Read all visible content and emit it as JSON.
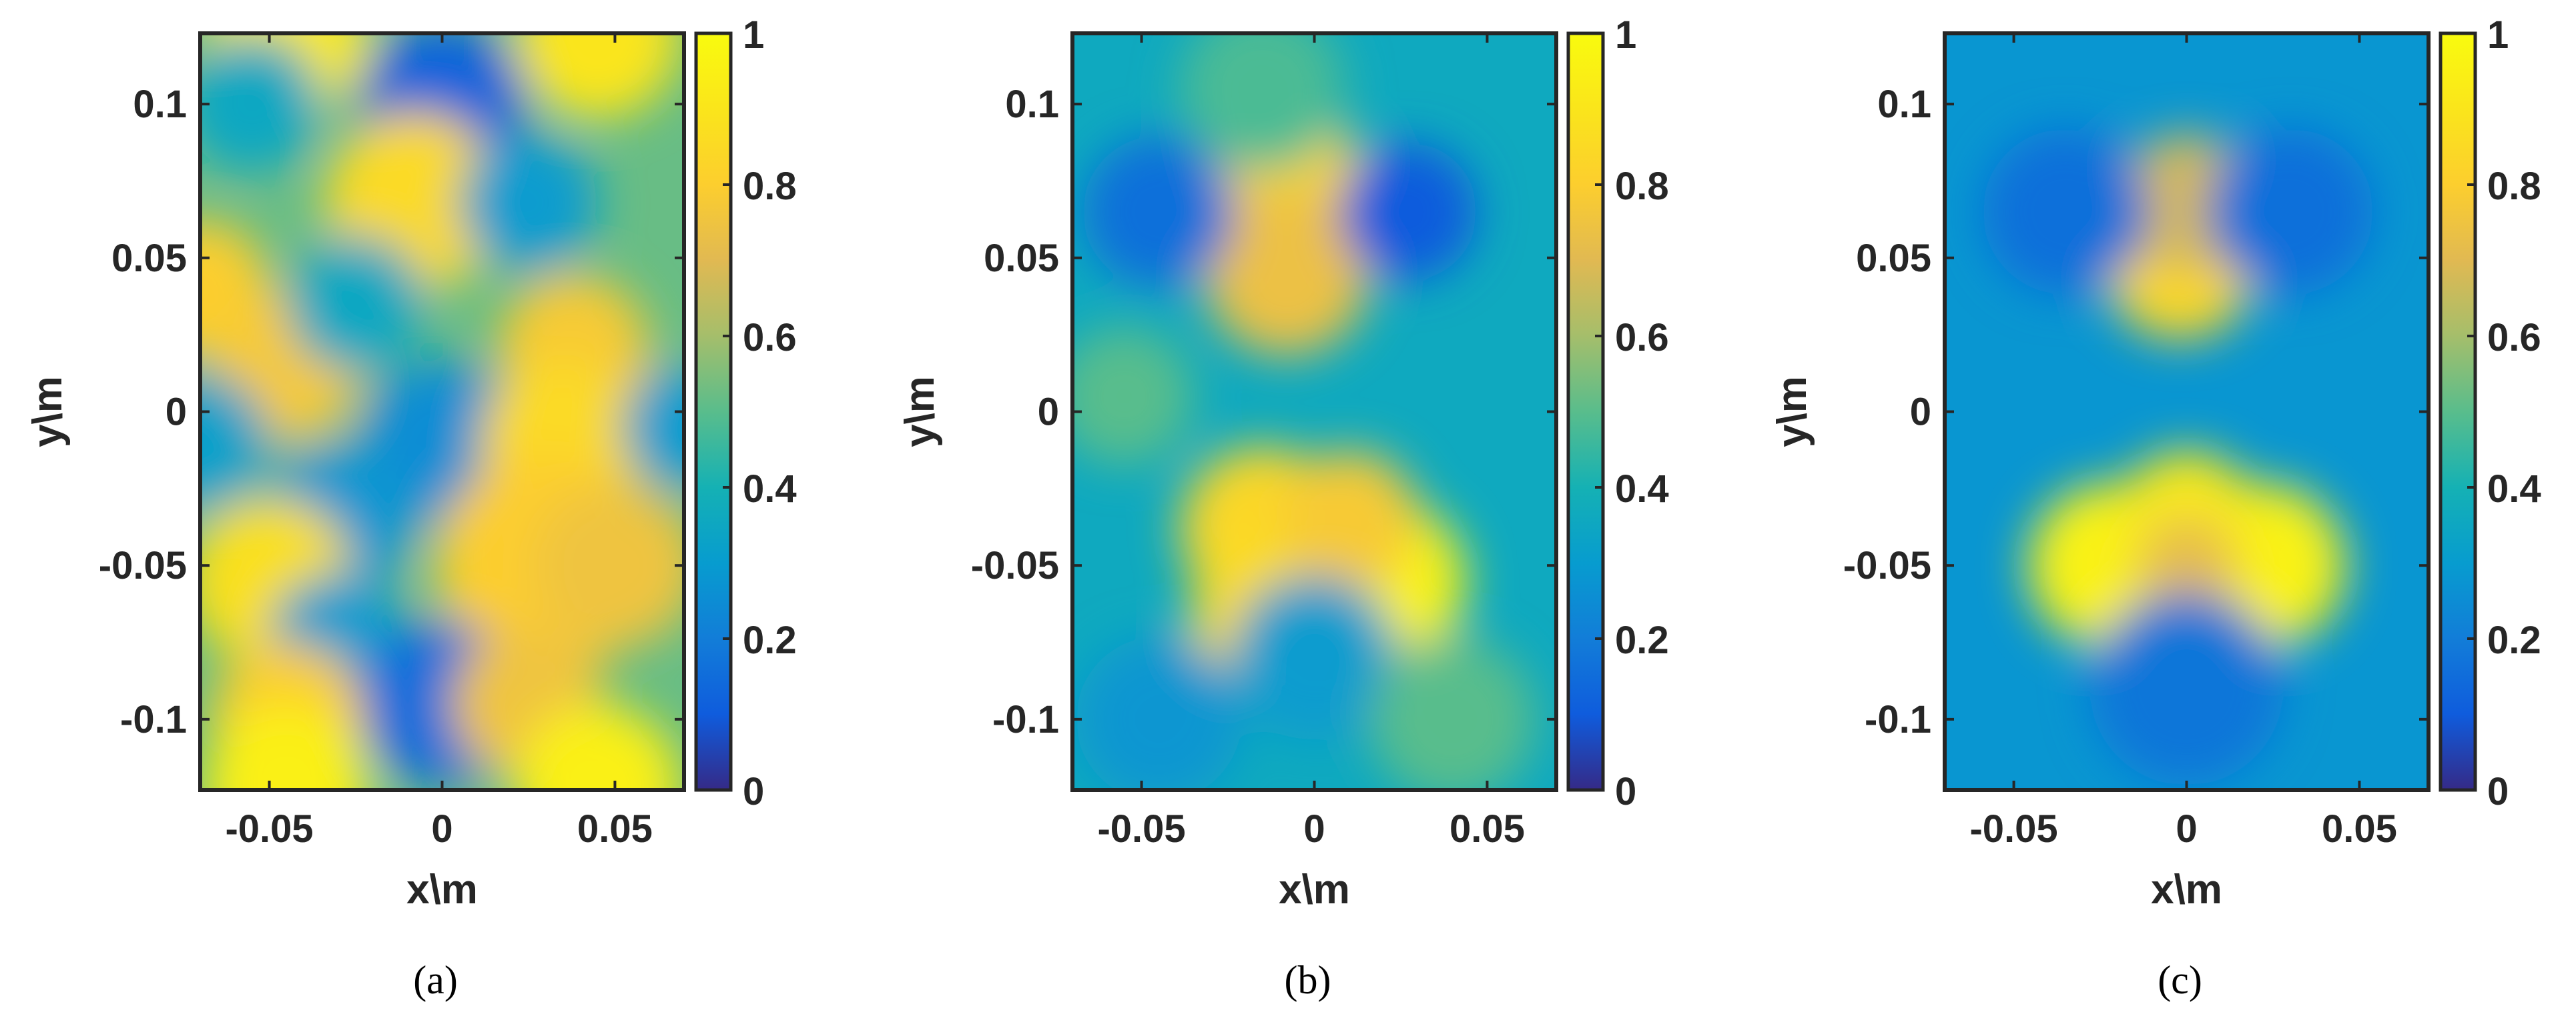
{
  "chart_data": [
    {
      "type": "heatmap",
      "caption": "(a)",
      "xlabel": "x\\m",
      "ylabel": "y\\m",
      "xlim": [
        -0.07,
        0.07
      ],
      "ylim": [
        -0.123,
        0.123
      ],
      "xticks": [
        -0.05,
        0,
        0.05
      ],
      "xtick_labels": [
        "-0.05",
        "0",
        "0.05"
      ],
      "yticks": [
        0.1,
        0.05,
        0,
        -0.05,
        -0.1
      ],
      "ytick_labels": [
        "0.1",
        "0.05",
        "0",
        "-0.05",
        "-0.1"
      ],
      "colorbar": {
        "range": [
          0,
          1
        ],
        "ticks": [
          1,
          0.8,
          0.6,
          0.4,
          0.2,
          0
        ],
        "tick_labels": [
          "1",
          "0.8",
          "0.6",
          "0.4",
          "0.2",
          "0"
        ],
        "colormap": "parula"
      },
      "base_level": 0.52,
      "features": [
        {
          "x": -0.045,
          "y": 0.122,
          "value": 0.92,
          "width": 0.012
        },
        {
          "x": 0.045,
          "y": 0.122,
          "value": 0.9,
          "width": 0.012
        },
        {
          "x": 0.0,
          "y": 0.1,
          "value": 0.12,
          "width": 0.012
        },
        {
          "x": -0.055,
          "y": 0.1,
          "value": 0.35,
          "width": 0.01
        },
        {
          "x": -0.008,
          "y": 0.068,
          "value": 0.85,
          "width": 0.013
        },
        {
          "x": 0.025,
          "y": 0.068,
          "value": 0.3,
          "width": 0.01
        },
        {
          "x": -0.07,
          "y": 0.04,
          "value": 0.8,
          "width": 0.01
        },
        {
          "x": 0.038,
          "y": 0.02,
          "value": 0.78,
          "width": 0.011
        },
        {
          "x": -0.045,
          "y": 0.015,
          "value": 0.78,
          "width": 0.011
        },
        {
          "x": -0.025,
          "y": 0.035,
          "value": 0.35,
          "width": 0.01
        },
        {
          "x": 0.0,
          "y": -0.01,
          "value": 0.25,
          "width": 0.012
        },
        {
          "x": 0.035,
          "y": -0.01,
          "value": 0.85,
          "width": 0.012
        },
        {
          "x": -0.07,
          "y": -0.01,
          "value": 0.32,
          "width": 0.01
        },
        {
          "x": 0.07,
          "y": -0.005,
          "value": 0.3,
          "width": 0.009
        },
        {
          "x": -0.03,
          "y": -0.035,
          "value": 0.28,
          "width": 0.011
        },
        {
          "x": -0.05,
          "y": -0.055,
          "value": 0.88,
          "width": 0.012
        },
        {
          "x": 0.03,
          "y": -0.05,
          "value": 0.8,
          "width": 0.016
        },
        {
          "x": 0.05,
          "y": -0.05,
          "value": 0.75,
          "width": 0.012
        },
        {
          "x": -0.03,
          "y": -0.075,
          "value": 0.3,
          "width": 0.01
        },
        {
          "x": 0.0,
          "y": -0.095,
          "value": 0.15,
          "width": 0.012
        },
        {
          "x": -0.045,
          "y": -0.1,
          "value": 0.8,
          "width": 0.011
        },
        {
          "x": 0.025,
          "y": -0.095,
          "value": 0.75,
          "width": 0.011
        },
        {
          "x": -0.045,
          "y": -0.122,
          "value": 0.95,
          "width": 0.012
        },
        {
          "x": 0.045,
          "y": -0.122,
          "value": 0.95,
          "width": 0.012
        }
      ]
    },
    {
      "type": "heatmap",
      "caption": "(b)",
      "xlabel": "x\\m",
      "ylabel": "y\\m",
      "xlim": [
        -0.07,
        0.07
      ],
      "ylim": [
        -0.123,
        0.123
      ],
      "xticks": [
        -0.05,
        0,
        0.05
      ],
      "xtick_labels": [
        "-0.05",
        "0",
        "0.05"
      ],
      "yticks": [
        0.1,
        0.05,
        0,
        -0.05,
        -0.1
      ],
      "ytick_labels": [
        "0.1",
        "0.05",
        "0",
        "-0.05",
        "-0.1"
      ],
      "colorbar": {
        "range": [
          0,
          1
        ],
        "ticks": [
          1,
          0.8,
          0.6,
          0.4,
          0.2,
          0
        ],
        "tick_labels": [
          "1",
          "0.8",
          "0.6",
          "0.4",
          "0.2",
          "0"
        ],
        "colormap": "parula"
      },
      "base_level": 0.36,
      "features": [
        {
          "x": -0.008,
          "y": 0.065,
          "value": 0.84,
          "width": 0.014
        },
        {
          "x": -0.008,
          "y": 0.045,
          "value": 0.74,
          "width": 0.012
        },
        {
          "x": 0.027,
          "y": 0.065,
          "value": 0.1,
          "width": 0.01
        },
        {
          "x": -0.045,
          "y": 0.065,
          "value": 0.16,
          "width": 0.011
        },
        {
          "x": -0.015,
          "y": 0.105,
          "value": 0.48,
          "width": 0.012
        },
        {
          "x": -0.055,
          "y": 0.005,
          "value": 0.5,
          "width": 0.01
        },
        {
          "x": -0.015,
          "y": -0.038,
          "value": 0.84,
          "width": 0.012
        },
        {
          "x": 0.02,
          "y": -0.055,
          "value": 0.96,
          "width": 0.012
        },
        {
          "x": -0.012,
          "y": -0.065,
          "value": 0.86,
          "width": 0.012
        },
        {
          "x": 0.01,
          "y": -0.035,
          "value": 0.78,
          "width": 0.01
        },
        {
          "x": 0.0,
          "y": -0.08,
          "value": 0.3,
          "width": 0.012
        },
        {
          "x": 0.04,
          "y": -0.1,
          "value": 0.5,
          "width": 0.012
        },
        {
          "x": -0.045,
          "y": -0.1,
          "value": 0.28,
          "width": 0.012
        }
      ]
    },
    {
      "type": "heatmap",
      "caption": "(c)",
      "xlabel": "x\\m",
      "ylabel": "y\\m",
      "xlim": [
        -0.07,
        0.07
      ],
      "ylim": [
        -0.123,
        0.123
      ],
      "xticks": [
        -0.05,
        0,
        0.05
      ],
      "xtick_labels": [
        "-0.05",
        "0",
        "0.05"
      ],
      "yticks": [
        0.1,
        0.05,
        0,
        -0.05,
        -0.1
      ],
      "ytick_labels": [
        "0.1",
        "0.05",
        "0",
        "-0.05",
        "-0.1"
      ],
      "colorbar": {
        "range": [
          0,
          1
        ],
        "ticks": [
          1,
          0.8,
          0.6,
          0.4,
          0.2,
          0
        ],
        "tick_labels": [
          "1",
          "0.8",
          "0.6",
          "0.4",
          "0.2",
          "0"
        ],
        "colormap": "parula"
      },
      "base_level": 0.28,
      "features": [
        {
          "x": -0.002,
          "y": 0.048,
          "value": 0.84,
          "width": 0.011
        },
        {
          "x": 0.0,
          "y": 0.068,
          "value": 0.68,
          "width": 0.01
        },
        {
          "x": -0.022,
          "y": -0.05,
          "value": 0.96,
          "width": 0.012
        },
        {
          "x": 0.022,
          "y": -0.05,
          "value": 0.96,
          "width": 0.012
        },
        {
          "x": 0.0,
          "y": -0.035,
          "value": 0.92,
          "width": 0.01
        },
        {
          "x": 0.0,
          "y": -0.065,
          "value": 0.92,
          "width": 0.01
        },
        {
          "x": 0.0,
          "y": -0.05,
          "value": 0.72,
          "width": 0.007
        },
        {
          "x": -0.035,
          "y": 0.065,
          "value": 0.16,
          "width": 0.012
        },
        {
          "x": 0.03,
          "y": 0.065,
          "value": 0.16,
          "width": 0.012
        },
        {
          "x": 0.0,
          "y": -0.09,
          "value": 0.18,
          "width": 0.014
        }
      ]
    }
  ]
}
